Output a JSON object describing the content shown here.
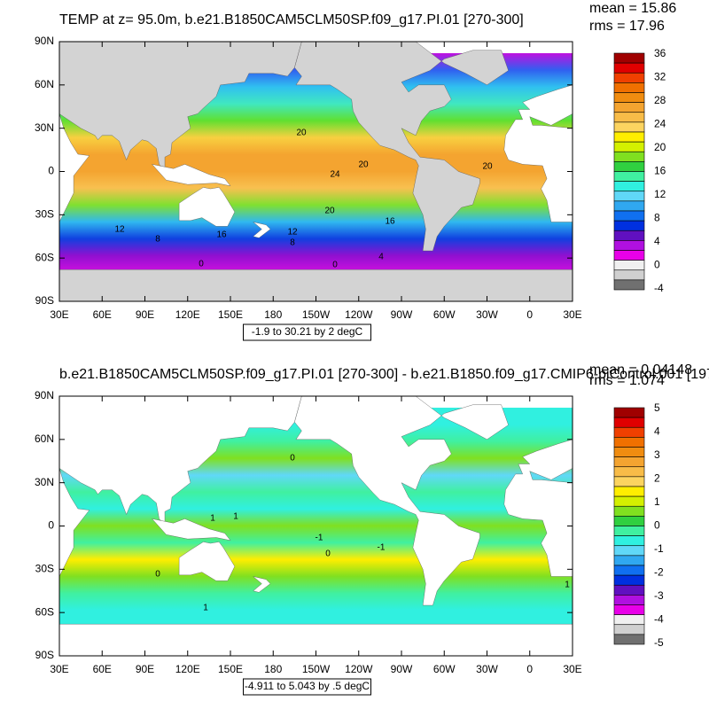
{
  "panels": [
    {
      "title": "TEMP at z=  95.0m, b.e21.B1850CAM5CLM50SP.f09_g17.PI.01 [270-300]",
      "mean": "mean = 15.86",
      "rms": "rms = 17.96",
      "range_label": "-1.9 to 30.21 by 2 degC",
      "lon_labels": [
        "30E",
        "60E",
        "90E",
        "120E",
        "150E",
        "180",
        "150W",
        "120W",
        "90W",
        "60W",
        "30W",
        "0",
        "30E"
      ],
      "lat_labels": [
        "90N",
        "60N",
        "30N",
        "0",
        "30S",
        "60S",
        "90S"
      ],
      "colorbar": {
        "labels": [
          "36",
          "32",
          "28",
          "24",
          "20",
          "16",
          "12",
          "8",
          "4",
          "0",
          "-4"
        ],
        "colors": [
          "#a00000",
          "#e00000",
          "#f04000",
          "#f07000",
          "#f08c10",
          "#f4a430",
          "#f8bc48",
          "#fcd460",
          "#ffee00",
          "#d4f000",
          "#80e020",
          "#30d040",
          "#40f0a0",
          "#30f0e0",
          "#60d8f8",
          "#30a8f0",
          "#1070f0",
          "#0030e0",
          "#6010c0",
          "#b010e0",
          "#e800e8",
          "#f0f0f0",
          "#d0d0d0",
          "#707070"
        ],
        "ocean": [
          "#c010e0",
          "#3060f0",
          "#30c0f0",
          "#40e8c0",
          "#60e030",
          "#f8d040",
          "#f4a430",
          "#f4a430",
          "#f8c050",
          "#80e030",
          "#30b8f0",
          "#1040e0",
          "#9010d0",
          "#d010e0"
        ]
      },
      "contour_labels": [
        "20",
        "24",
        "20",
        "16",
        "20",
        "12",
        "8",
        "12",
        "8",
        "0",
        "0",
        "4",
        "16",
        "20"
      ]
    },
    {
      "title": "b.e21.B1850CAM5CLM50SP.f09_g17.PI.01 [270-300] - b.e21.B1850.f09_g17.CMIP6-piControl.001 [197",
      "mean": "mean = 0.04148",
      "rms": "rms = 1.074",
      "range_label": "-4.911 to 5.043 by .5 degC",
      "lon_labels": [
        "30E",
        "60E",
        "90E",
        "120E",
        "150E",
        "180",
        "150W",
        "120W",
        "90W",
        "60W",
        "30W",
        "0",
        "30E"
      ],
      "lat_labels": [
        "90N",
        "60N",
        "30N",
        "0",
        "30S",
        "60S",
        "90S"
      ],
      "colorbar": {
        "labels": [
          "5",
          "4",
          "3",
          "2",
          "1",
          "0",
          "-1",
          "-2",
          "-3",
          "-4",
          "-5"
        ],
        "colors": [
          "#a00000",
          "#e00000",
          "#f04000",
          "#f07000",
          "#f08c10",
          "#f4a430",
          "#f8bc48",
          "#fcd460",
          "#ffee00",
          "#d4f000",
          "#80e020",
          "#30d040",
          "#40f0a0",
          "#30f0e0",
          "#60d8f8",
          "#30a8f0",
          "#1070f0",
          "#0030e0",
          "#6010c0",
          "#b010e0",
          "#e800e8",
          "#f0f0f0",
          "#d0d0d0",
          "#707070"
        ],
        "ocean": [
          "#30f0e0",
          "#30f0e0",
          "#40f0a0",
          "#80e020",
          "#60d8f8",
          "#40f0a0",
          "#30f0e0",
          "#80e020",
          "#40f0a0",
          "#ffee00",
          "#80e020",
          "#40f0a0",
          "#30f0e0",
          "#30f0e0"
        ]
      },
      "contour_labels": [
        "0",
        "0",
        "-1",
        "1",
        "1",
        "-1",
        "0",
        "1",
        "1"
      ]
    }
  ]
}
